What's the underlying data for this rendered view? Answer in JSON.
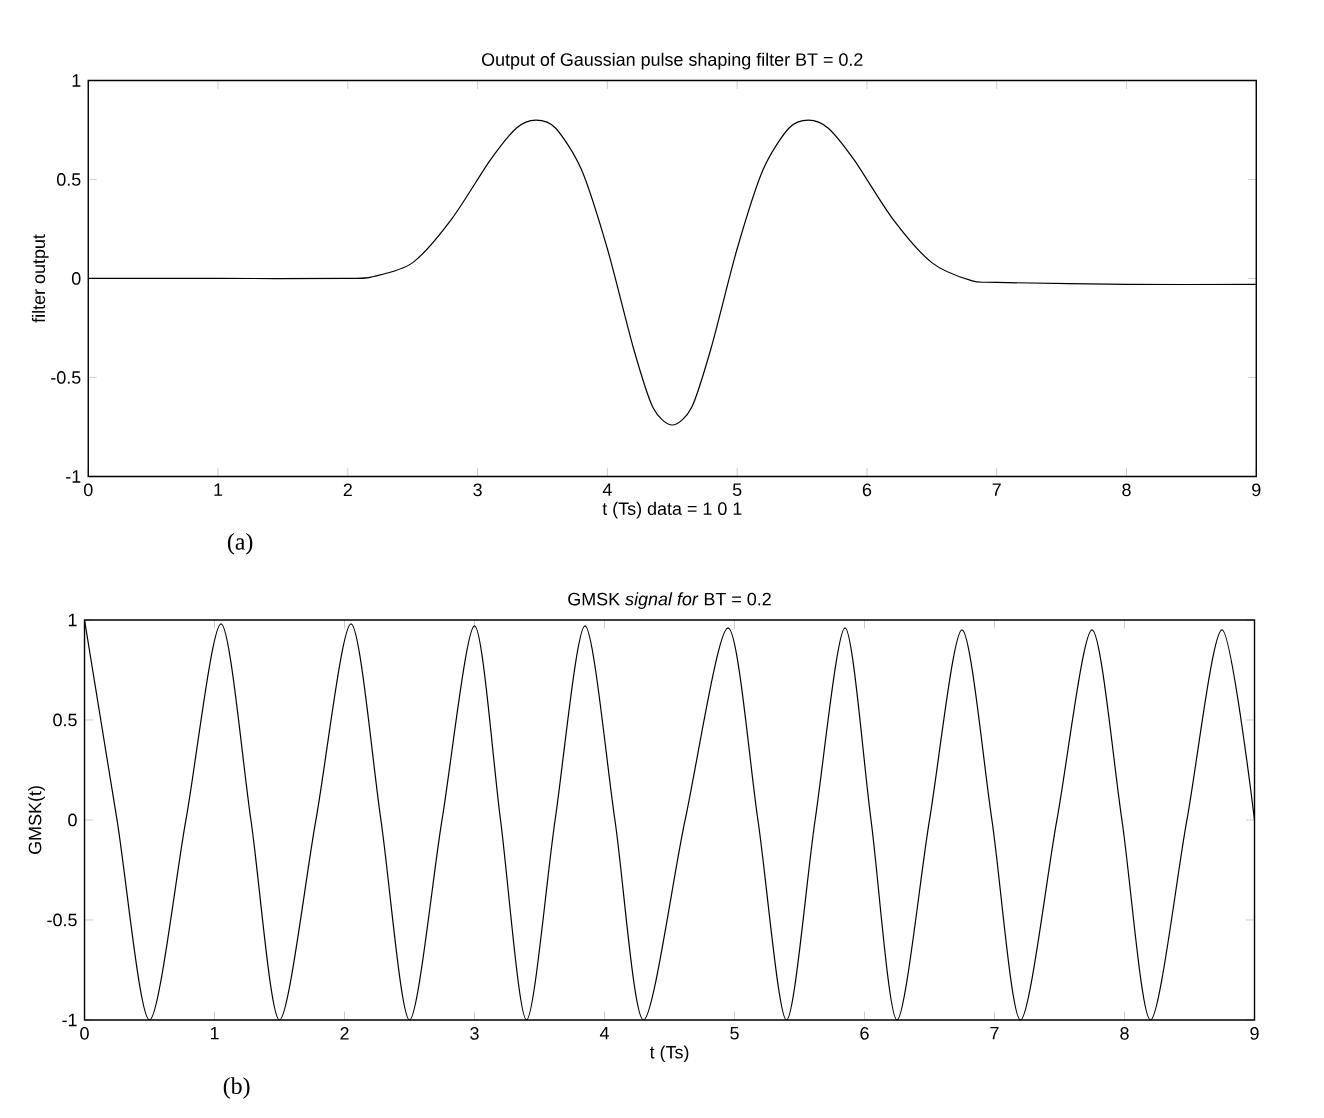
{
  "chart_data": [
    {
      "type": "line",
      "title": "Output of Gaussian pulse shaping filter  BT = 0.2",
      "xlabel": "t   (Ts)     data = 1 0 1",
      "ylabel": "filter output",
      "annotations": [
        "(a)"
      ],
      "color": "#000000",
      "x": [
        0,
        1,
        2,
        2.2,
        2.5,
        2.8,
        3.1,
        3.3,
        3.45,
        3.6,
        3.8,
        4.0,
        4.2,
        4.35,
        4.5,
        4.65,
        4.8,
        5.0,
        5.2,
        5.4,
        5.55,
        5.7,
        5.9,
        6.2,
        6.5,
        6.8,
        7,
        8,
        9
      ],
      "values": [
        0,
        0,
        0,
        0.01,
        0.08,
        0.3,
        0.6,
        0.76,
        0.8,
        0.76,
        0.55,
        0.15,
        -0.35,
        -0.65,
        -0.74,
        -0.65,
        -0.35,
        0.15,
        0.55,
        0.76,
        0.8,
        0.76,
        0.6,
        0.3,
        0.08,
        -0.01,
        -0.02,
        -0.03,
        -0.03
      ],
      "xlim": [
        0,
        9
      ],
      "ylim": [
        -1,
        1
      ],
      "xticks": [
        0,
        1,
        2,
        3,
        4,
        5,
        6,
        7,
        8,
        9
      ],
      "yticks": [
        -1,
        -0.5,
        0,
        0.5,
        1
      ]
    },
    {
      "type": "line",
      "title": "GMSK *signal for* BT = 0.2",
      "xlabel": "t   (Ts)",
      "ylabel": "GMSK(t)",
      "annotations": [
        "(b)"
      ],
      "color": "#000000",
      "x": [
        0,
        0.25,
        0.5,
        0.78,
        1.05,
        1.28,
        1.5,
        1.78,
        2.05,
        2.28,
        2.5,
        2.75,
        3.0,
        3.2,
        3.4,
        3.62,
        3.85,
        4.08,
        4.3,
        4.62,
        4.95,
        5.18,
        5.4,
        5.62,
        5.85,
        6.05,
        6.25,
        6.5,
        6.75,
        6.98,
        7.2,
        7.48,
        7.75,
        7.98,
        8.2,
        8.48,
        8.75,
        9
      ],
      "values": [
        1,
        0,
        -1,
        0,
        0.98,
        0,
        -1,
        0,
        0.98,
        0,
        -1,
        0,
        0.97,
        0,
        -1,
        0,
        0.97,
        0,
        -1,
        0,
        0.96,
        0,
        -1,
        0,
        0.96,
        0,
        -1,
        0,
        0.95,
        0,
        -1,
        0,
        0.95,
        0,
        -1,
        0,
        0.95,
        0
      ],
      "xlim": [
        0,
        9
      ],
      "ylim": [
        -1,
        1
      ],
      "xticks": [
        0,
        1,
        2,
        3,
        4,
        5,
        6,
        7,
        8,
        9
      ],
      "yticks": [
        -1,
        -0.5,
        0,
        0.5,
        1
      ]
    }
  ]
}
